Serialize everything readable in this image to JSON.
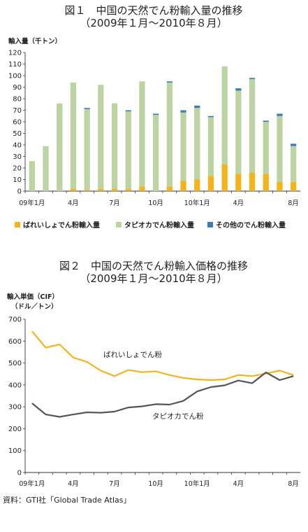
{
  "chart_data": [
    {
      "type": "bar",
      "stacked": true,
      "title": "図１　中国の天然でん粉輸入量の推移",
      "subtitle": "（2009年１月～2010年８月）",
      "ylabel": "輸入量（千トン）",
      "ylim": [
        0,
        120
      ],
      "yticks": [
        0,
        10,
        20,
        30,
        40,
        50,
        60,
        70,
        80,
        90,
        100,
        110,
        120
      ],
      "xtick_labels": [
        "09年1月",
        "",
        "",
        "4月",
        "",
        "",
        "7月",
        "",
        "",
        "10月",
        "",
        "",
        "10年1月",
        "",
        "",
        "4月",
        "",
        "",
        "",
        "8月"
      ],
      "legend_position": "bottom",
      "series": [
        {
          "name": "ばれいしょでん粉輸入量",
          "color": "#f2b31b",
          "values": [
            0,
            0,
            0,
            2,
            1,
            2,
            2,
            2,
            4,
            0,
            4,
            9,
            10,
            13,
            23,
            15,
            16,
            15,
            8,
            8
          ]
        },
        {
          "name": "タピオカでん粉輸入量",
          "color": "#bcd3a2",
          "values": [
            26,
            39,
            76,
            92,
            70,
            90,
            74,
            67,
            91,
            66,
            90,
            59,
            62,
            51,
            85,
            72,
            81,
            45,
            57,
            31
          ]
        },
        {
          "name": "その他のでん粉輸入量",
          "color": "#3b7cb8",
          "values": [
            0,
            0,
            0,
            0,
            1,
            0,
            0,
            1,
            0,
            1,
            1,
            2,
            2,
            1,
            0,
            2,
            1,
            1,
            2,
            2
          ]
        }
      ]
    },
    {
      "type": "line",
      "title": "図２　中国の天然でん粉輸入価格の推移",
      "subtitle": "（2009年１月～2010年８月）",
      "ylabel": "輸入単価（CIF）",
      "ylabel2": "（ドル／トン）",
      "ylim": [
        0,
        700
      ],
      "yticks": [
        0,
        100,
        200,
        300,
        400,
        500,
        600,
        700
      ],
      "xtick_labels": [
        "09年1月",
        "",
        "",
        "4月",
        "",
        "",
        "7月",
        "",
        "",
        "10月",
        "",
        "",
        "10年1月",
        "",
        "",
        "4月",
        "",
        "",
        "",
        "8月"
      ],
      "series": [
        {
          "name": "ばれいしょでん粉",
          "color": "#f2b31b",
          "values": [
            645,
            570,
            585,
            525,
            505,
            465,
            440,
            468,
            458,
            462,
            445,
            432,
            425,
            422,
            425,
            445,
            440,
            452,
            465,
            445
          ]
        },
        {
          "name": "タピオカでん粉",
          "color": "#555555",
          "values": [
            316,
            265,
            254,
            265,
            275,
            273,
            278,
            297,
            302,
            312,
            310,
            327,
            370,
            390,
            398,
            420,
            408,
            457,
            422,
            440
          ]
        }
      ]
    }
  ],
  "source": "資料：GTI社「Global Trade Atlas」"
}
